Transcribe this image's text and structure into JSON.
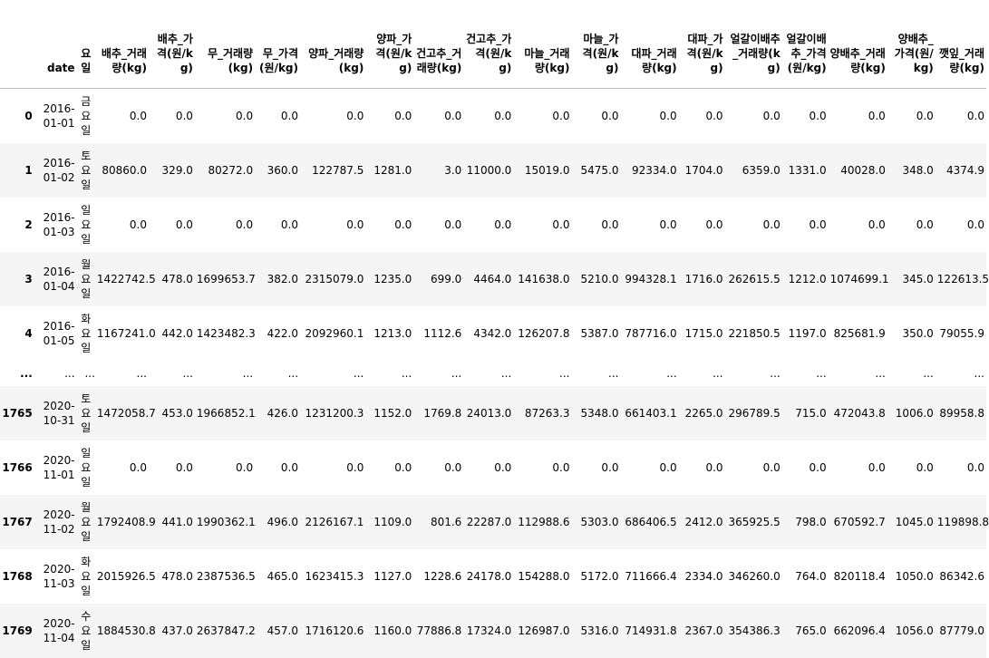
{
  "table": {
    "columns": [
      "",
      "date",
      "요일",
      "배추_거래량(kg)",
      "배추_가격(원/kg)",
      "무_거래량(kg)",
      "무_가격(원/kg)",
      "양파_거래량(kg)",
      "양파_가격(원/kg)",
      "건고추_거래량(kg)",
      "건고추_가격(원/kg)",
      "마늘_거래량(kg)",
      "마늘_가격(원/kg)",
      "대파_거래량(kg)",
      "대파_가격(원/kg)",
      "얼갈이배추_거래량(kg)",
      "얼갈이배추_가격(원/kg)",
      "양배추_거래량(kg)",
      "양배추_가격(원/kg)",
      "깻잎_거래량(kg)"
    ],
    "rows": [
      [
        "0",
        "2016-01-01",
        "금요일",
        "0.0",
        "0.0",
        "0.0",
        "0.0",
        "0.0",
        "0.0",
        "0.0",
        "0.0",
        "0.0",
        "0.0",
        "0.0",
        "0.0",
        "0.0",
        "0.0",
        "0.0",
        "0.0",
        "0.0"
      ],
      [
        "1",
        "2016-01-02",
        "토요일",
        "80860.0",
        "329.0",
        "80272.0",
        "360.0",
        "122787.5",
        "1281.0",
        "3.0",
        "11000.0",
        "15019.0",
        "5475.0",
        "92334.0",
        "1704.0",
        "6359.0",
        "1331.0",
        "40028.0",
        "348.0",
        "4374.9"
      ],
      [
        "2",
        "2016-01-03",
        "일요일",
        "0.0",
        "0.0",
        "0.0",
        "0.0",
        "0.0",
        "0.0",
        "0.0",
        "0.0",
        "0.0",
        "0.0",
        "0.0",
        "0.0",
        "0.0",
        "0.0",
        "0.0",
        "0.0",
        "0.0"
      ],
      [
        "3",
        "2016-01-04",
        "월요일",
        "1422742.5",
        "478.0",
        "1699653.7",
        "382.0",
        "2315079.0",
        "1235.0",
        "699.0",
        "4464.0",
        "141638.0",
        "5210.0",
        "994328.1",
        "1716.0",
        "262615.5",
        "1212.0",
        "1074699.1",
        "345.0",
        "122613.5"
      ],
      [
        "4",
        "2016-01-05",
        "화요일",
        "1167241.0",
        "442.0",
        "1423482.3",
        "422.0",
        "2092960.1",
        "1213.0",
        "1112.6",
        "4342.0",
        "126207.8",
        "5387.0",
        "787716.0",
        "1715.0",
        "221850.5",
        "1197.0",
        "825681.9",
        "350.0",
        "79055.9"
      ],
      [
        "...",
        "...",
        "...",
        "...",
        "...",
        "...",
        "...",
        "...",
        "...",
        "...",
        "...",
        "...",
        "...",
        "...",
        "...",
        "...",
        "...",
        "...",
        "...",
        "..."
      ],
      [
        "1765",
        "2020-10-31",
        "토요일",
        "1472058.7",
        "453.0",
        "1966852.1",
        "426.0",
        "1231200.3",
        "1152.0",
        "1769.8",
        "24013.0",
        "87263.3",
        "5348.0",
        "661403.1",
        "2265.0",
        "296789.5",
        "715.0",
        "472043.8",
        "1006.0",
        "89958.8"
      ],
      [
        "1766",
        "2020-11-01",
        "일요일",
        "0.0",
        "0.0",
        "0.0",
        "0.0",
        "0.0",
        "0.0",
        "0.0",
        "0.0",
        "0.0",
        "0.0",
        "0.0",
        "0.0",
        "0.0",
        "0.0",
        "0.0",
        "0.0",
        "0.0"
      ],
      [
        "1767",
        "2020-11-02",
        "월요일",
        "1792408.9",
        "441.0",
        "1990362.1",
        "496.0",
        "2126167.1",
        "1109.0",
        "801.6",
        "22287.0",
        "112988.6",
        "5303.0",
        "686406.5",
        "2412.0",
        "365925.5",
        "798.0",
        "670592.7",
        "1045.0",
        "119898.8"
      ],
      [
        "1768",
        "2020-11-03",
        "화요일",
        "2015926.5",
        "478.0",
        "2387536.5",
        "465.0",
        "1623415.3",
        "1127.0",
        "1228.6",
        "24178.0",
        "154288.0",
        "5172.0",
        "711666.4",
        "2334.0",
        "346260.0",
        "764.0",
        "820118.4",
        "1050.0",
        "86342.6"
      ],
      [
        "1769",
        "2020-11-04",
        "수요일",
        "1884530.8",
        "437.0",
        "2637847.2",
        "457.0",
        "1716120.6",
        "1160.0",
        "77886.8",
        "17324.0",
        "126987.0",
        "5316.0",
        "714931.8",
        "2367.0",
        "354386.3",
        "765.0",
        "662096.4",
        "1056.0",
        "87779.0"
      ]
    ]
  }
}
